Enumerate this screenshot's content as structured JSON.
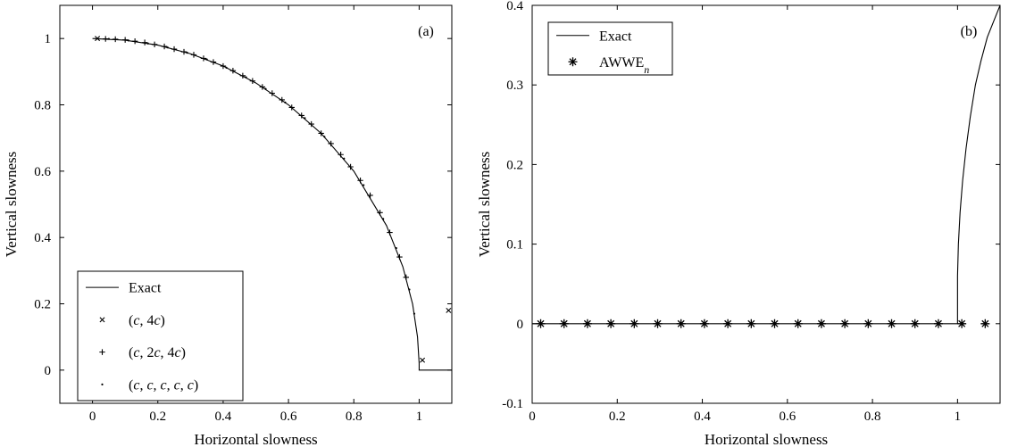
{
  "chart_data": [
    {
      "panel_label": "(a)",
      "type": "line",
      "xlabel": "Horizontal slowness",
      "ylabel": "Vertical slowness",
      "xlim": [
        -0.1,
        1.1
      ],
      "ylim": [
        -0.1,
        1.1
      ],
      "xticks": [
        0,
        0.2,
        0.4,
        0.6,
        0.8,
        1
      ],
      "xtick_labels": [
        "0",
        "0.2",
        "0.4",
        "0.6",
        "0.8",
        "1"
      ],
      "yticks": [
        0,
        0.2,
        0.4,
        0.6,
        0.8,
        1
      ],
      "ytick_labels": [
        "0",
        "0.2",
        "0.4",
        "0.6",
        "0.8",
        "1"
      ],
      "grid": false,
      "legend_placement": "bottom-left",
      "series": [
        {
          "name": "Exact",
          "marker": "line",
          "x": [
            0,
            0.1,
            0.2,
            0.3,
            0.4,
            0.5,
            0.6,
            0.7,
            0.8,
            0.9,
            0.95,
            0.98,
            0.995,
            1.0,
            1.0,
            1.1
          ],
          "y": [
            1,
            0.995,
            0.98,
            0.954,
            0.917,
            0.866,
            0.8,
            0.714,
            0.6,
            0.436,
            0.312,
            0.199,
            0.1,
            0.02,
            0,
            0
          ]
        },
        {
          "name": "(c, 4c)",
          "name_parts": [
            {
              "t": "(",
              "i": false
            },
            {
              "t": "c",
              "i": true
            },
            {
              "t": ", 4",
              "i": false
            },
            {
              "t": "c",
              "i": true
            },
            {
              "t": ")",
              "i": false
            }
          ],
          "marker": "x",
          "x": [
            0.015,
            1.01,
            1.09
          ],
          "y": [
            1.0,
            0.03,
            0.18
          ]
        },
        {
          "name": "(c, 2c, 4c)",
          "name_parts": [
            {
              "t": "(",
              "i": false
            },
            {
              "t": "c",
              "i": true
            },
            {
              "t": ", 2",
              "i": false
            },
            {
              "t": "c",
              "i": true
            },
            {
              "t": ", 4",
              "i": false
            },
            {
              "t": "c",
              "i": true
            },
            {
              "t": ")",
              "i": false
            }
          ],
          "marker": "+",
          "x": [
            0.04,
            0.07,
            0.1,
            0.13,
            0.16,
            0.19,
            0.22,
            0.25,
            0.28,
            0.31,
            0.34,
            0.37,
            0.4,
            0.43,
            0.46,
            0.49,
            0.52,
            0.55,
            0.58,
            0.61,
            0.64,
            0.67,
            0.7,
            0.73,
            0.76,
            0.79,
            0.82,
            0.85,
            0.88,
            0.91,
            0.94,
            0.96
          ],
          "y": [
            0.999,
            0.998,
            0.996,
            0.992,
            0.988,
            0.982,
            0.976,
            0.968,
            0.96,
            0.951,
            0.94,
            0.929,
            0.917,
            0.903,
            0.888,
            0.872,
            0.854,
            0.835,
            0.815,
            0.792,
            0.768,
            0.742,
            0.714,
            0.683,
            0.65,
            0.613,
            0.572,
            0.527,
            0.475,
            0.415,
            0.341,
            0.28
          ]
        },
        {
          "name": "(c, c, c, c, c)",
          "name_parts": [
            {
              "t": "(",
              "i": false
            },
            {
              "t": "c",
              "i": true
            },
            {
              "t": ", ",
              "i": false
            },
            {
              "t": "c",
              "i": true
            },
            {
              "t": ", ",
              "i": false
            },
            {
              "t": "c",
              "i": true
            },
            {
              "t": ", ",
              "i": false
            },
            {
              "t": "c",
              "i": true
            },
            {
              "t": ", ",
              "i": false
            },
            {
              "t": "c",
              "i": true
            },
            {
              "t": ")",
              "i": false
            }
          ],
          "marker": "dot",
          "x": [
            0.05,
            0.11,
            0.17,
            0.23,
            0.29,
            0.35,
            0.41,
            0.47,
            0.53,
            0.59,
            0.65,
            0.71,
            0.77,
            0.83,
            0.89,
            0.93,
            0.97,
            0.985
          ],
          "y": [
            0.999,
            0.994,
            0.985,
            0.973,
            0.957,
            0.937,
            0.912,
            0.883,
            0.848,
            0.807,
            0.76,
            0.704,
            0.638,
            0.558,
            0.456,
            0.368,
            0.243,
            0.17
          ]
        }
      ]
    },
    {
      "panel_label": "(b)",
      "type": "line",
      "xlabel": "Horizontal slowness",
      "ylabel": "Vertical slowness",
      "xlim": [
        0,
        1.1
      ],
      "ylim": [
        -0.1,
        0.4
      ],
      "xticks": [
        0,
        0.2,
        0.4,
        0.6,
        0.8,
        1
      ],
      "xtick_labels": [
        "0",
        "0.2",
        "0.4",
        "0.6",
        "0.8",
        "1"
      ],
      "yticks": [
        -0.1,
        0,
        0.1,
        0.2,
        0.3,
        0.4
      ],
      "ytick_labels": [
        "-0.1",
        "0",
        "0.1",
        "0.2",
        "0.3",
        "0.4"
      ],
      "grid": false,
      "legend_placement": "top-left",
      "series": [
        {
          "name": "Exact",
          "marker": "line",
          "x": [
            0,
            1.0,
            1.0,
            1.002,
            1.006,
            1.012,
            1.02,
            1.03,
            1.042,
            1.055,
            1.07,
            1.085,
            1.1
          ],
          "y": [
            0,
            0,
            0.06,
            0.1,
            0.14,
            0.18,
            0.22,
            0.26,
            0.3,
            0.33,
            0.36,
            0.38,
            0.4
          ]
        },
        {
          "name": "AWWEn",
          "name_parts": [
            {
              "t": "AWWE",
              "i": false
            },
            {
              "t": "n",
              "i": true,
              "sub": true
            }
          ],
          "marker": "asterisk",
          "x": [
            0.02,
            0.075,
            0.13,
            0.185,
            0.24,
            0.295,
            0.35,
            0.405,
            0.46,
            0.515,
            0.57,
            0.625,
            0.68,
            0.735,
            0.79,
            0.845,
            0.9,
            0.955,
            1.01,
            1.065
          ],
          "y": [
            0,
            0,
            0,
            0,
            0,
            0,
            0,
            0,
            0,
            0,
            0,
            0,
            0,
            0,
            0,
            0,
            0,
            0,
            0,
            0
          ]
        }
      ]
    }
  ]
}
